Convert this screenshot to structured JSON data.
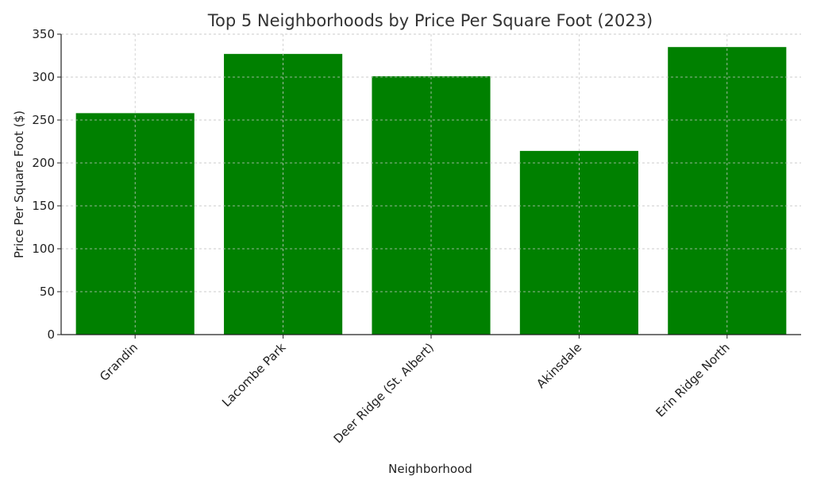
{
  "chart_data": {
    "type": "bar",
    "title": "Top 5 Neighborhoods by Price Per Square Foot (2023)",
    "xlabel": "Neighborhood",
    "ylabel": "Price Per Square Foot ($)",
    "categories": [
      "Grandin",
      "Lacombe Park",
      "Deer Ridge (St. Albert)",
      "Akinsdale",
      "Erin Ridge North"
    ],
    "values": [
      258,
      327,
      301,
      214,
      335
    ],
    "ylim": [
      0,
      350
    ],
    "yticks": [
      0,
      50,
      100,
      150,
      200,
      250,
      300,
      350
    ],
    "ytick_labels": [
      "0",
      "50",
      "100",
      "150",
      "200",
      "250",
      "300",
      "350"
    ],
    "grid": true,
    "bar_color": "#008000"
  }
}
